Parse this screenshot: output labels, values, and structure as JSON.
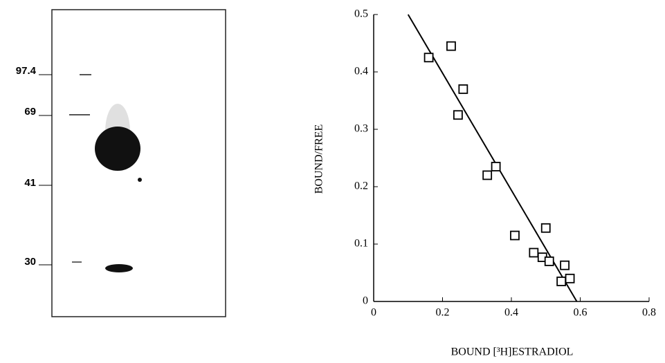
{
  "gel": {
    "markers": [
      "97.4",
      "69",
      "41",
      "30"
    ]
  },
  "chart_data": {
    "type": "scatter",
    "x_label": "BOUND [³H]ESTRADIOL",
    "y_label": "BOUND/FREE",
    "x": [
      0.16,
      0.225,
      0.245,
      0.26,
      0.33,
      0.355,
      0.41,
      0.465,
      0.49,
      0.5,
      0.51,
      0.545,
      0.555,
      0.57
    ],
    "values": [
      0.425,
      0.445,
      0.325,
      0.37,
      0.22,
      0.235,
      0.115,
      0.085,
      0.077,
      0.128,
      0.07,
      0.035,
      0.063,
      0.04
    ],
    "fit": {
      "x": [
        0.1,
        0.59
      ],
      "values": [
        0.5,
        0
      ]
    },
    "color": "#000000",
    "xlim": [
      0,
      0.8
    ],
    "ylim": [
      0,
      0.5
    ],
    "xticks": [
      0,
      0.2,
      0.4,
      0.6,
      0.8
    ],
    "yticks": [
      0,
      0.1,
      0.2,
      0.3,
      0.4,
      0.5
    ]
  }
}
